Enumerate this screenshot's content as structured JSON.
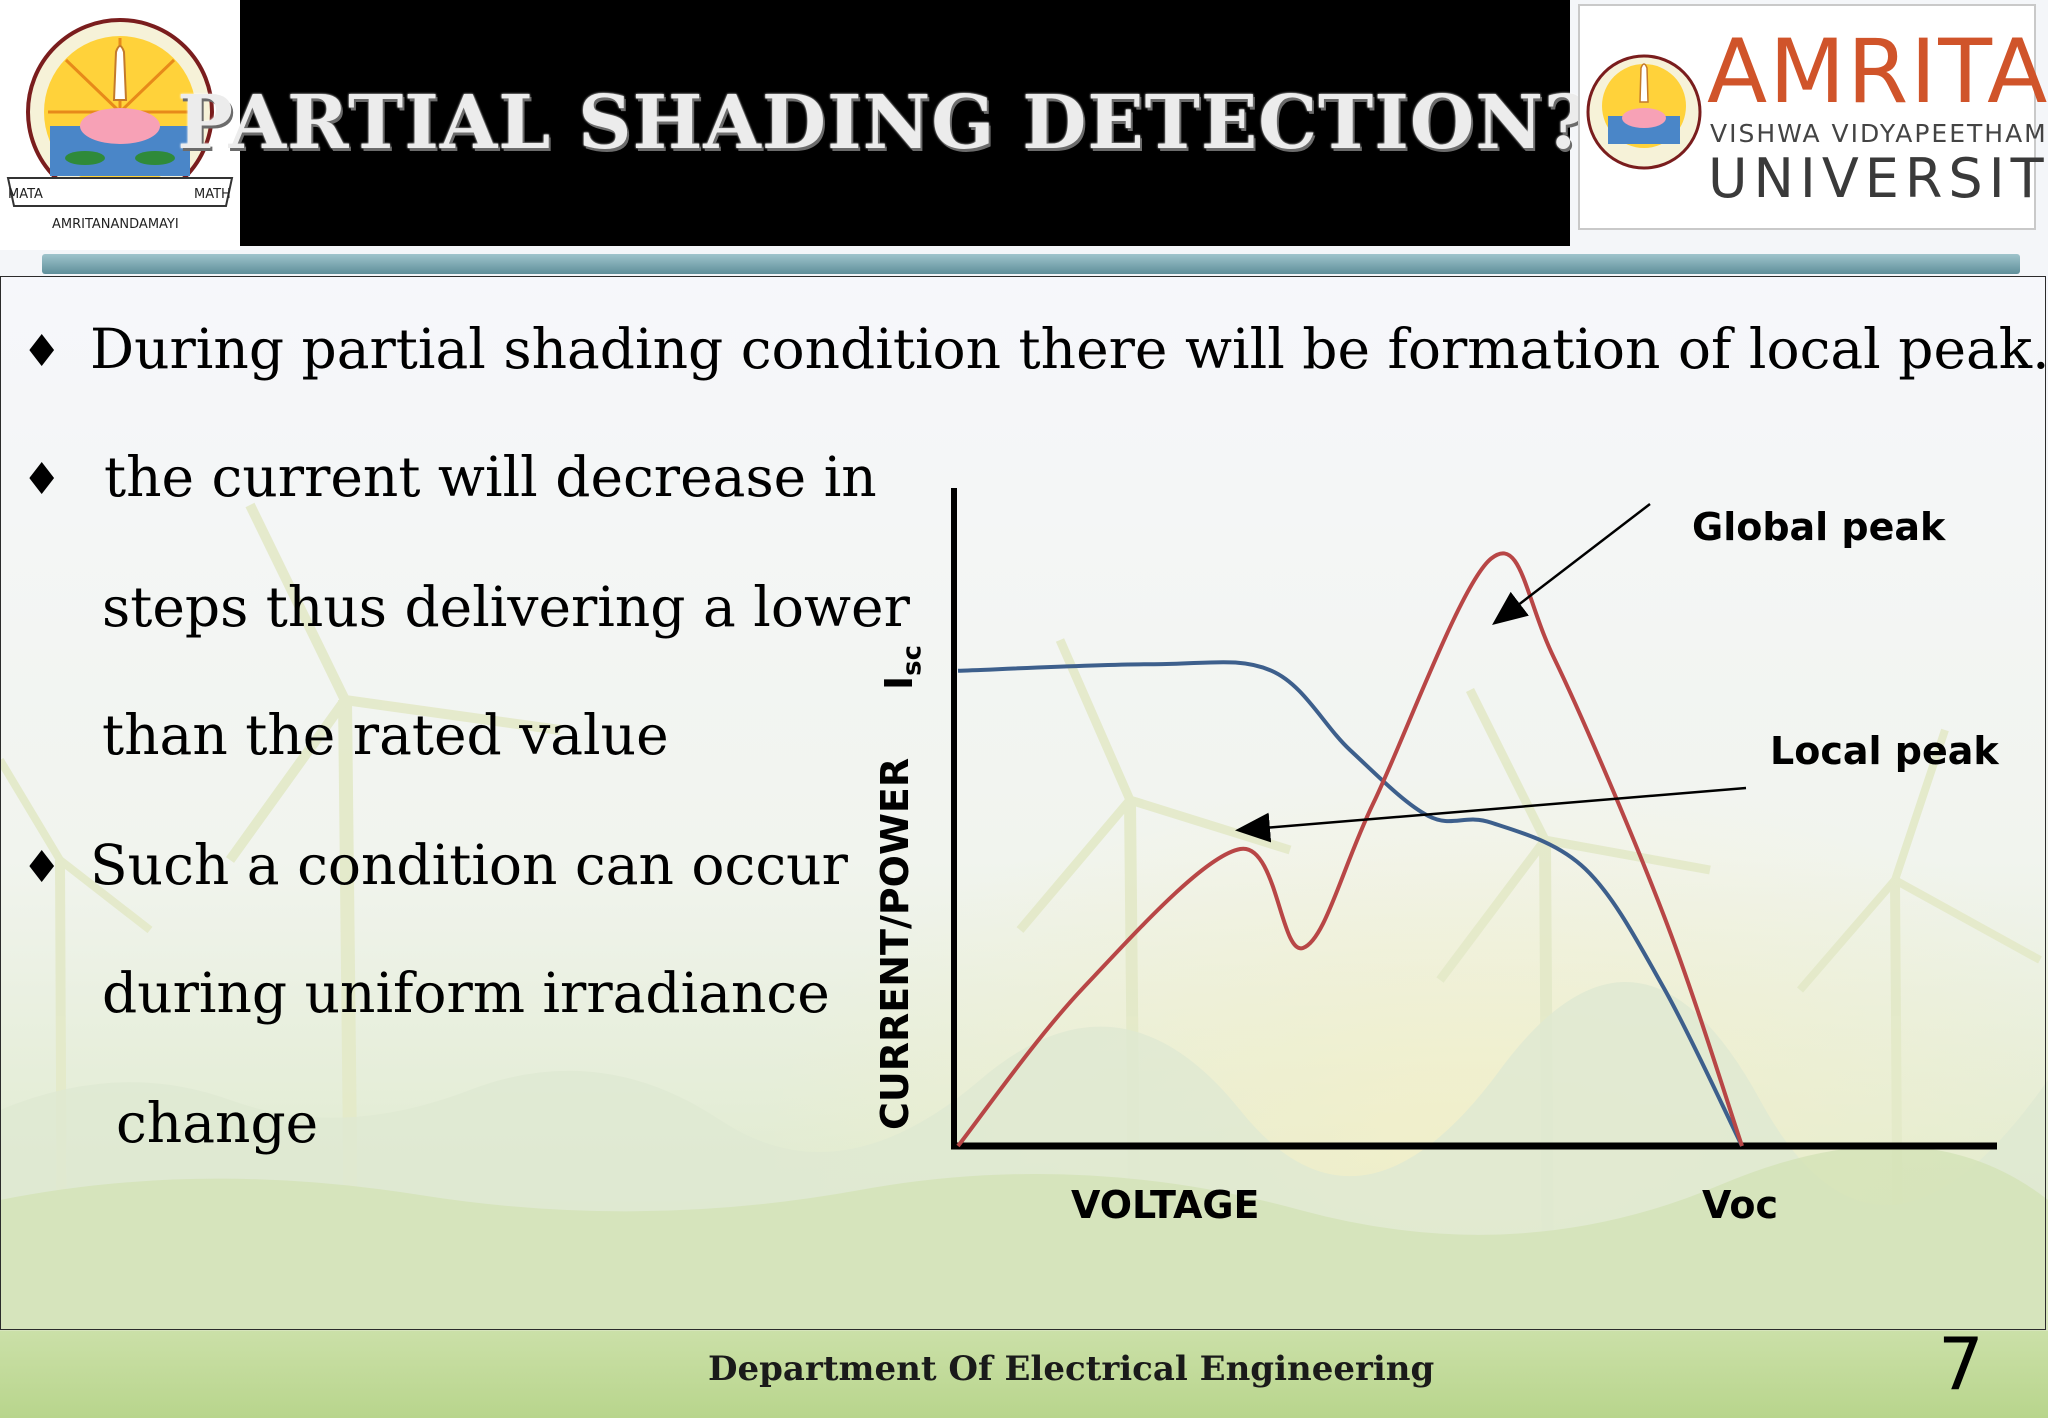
{
  "slide": {
    "title": "PARTIAL SHADING DETECTION??",
    "bullets": [
      {
        "lines": [
          "During partial shading condition there will be formation of local peak."
        ]
      },
      {
        "lines": [
          "the current will decrease in",
          "steps thus delivering a lower",
          "than the rated value"
        ]
      },
      {
        "lines": [
          "Such a condition can occur",
          "during uniform irradiance",
          "change"
        ]
      }
    ],
    "bullet_symbol": "♦"
  },
  "logos": {
    "left_seal": {
      "ring_text_left": "MATA",
      "ring_text_center": "AMRITANANDAMAYI",
      "ring_text_right": "MATH"
    },
    "right": {
      "name": "AMRITA",
      "subtitle": "VISHWA VIDYAPEETHAM",
      "university": "UNIVERSITY",
      "brand_color": "#d0542a"
    }
  },
  "chart_data": {
    "type": "line",
    "title": "",
    "xlabel": "VOLTAGE",
    "ylabel": "CURRENT/POWER",
    "x_tick_label": "Voc",
    "y_tick_label": "I",
    "y_tick_label_subscript": "sc",
    "annotations": [
      {
        "text": "Global peak"
      },
      {
        "text": "Local peak"
      }
    ],
    "series": [
      {
        "color": "#3d5f8c",
        "x": [
          0,
          0.25,
          0.4,
          0.5,
          0.6,
          0.68,
          0.8,
          0.9,
          1.0
        ],
        "y": [
          0.72,
          0.73,
          0.72,
          0.6,
          0.5,
          0.49,
          0.42,
          0.24,
          0.0
        ]
      },
      {
        "color": "#b84646",
        "x": [
          0,
          0.16,
          0.36,
          0.44,
          0.53,
          0.68,
          0.76,
          0.9,
          1.0
        ],
        "y": [
          0.0,
          0.24,
          0.45,
          0.3,
          0.52,
          0.89,
          0.74,
          0.35,
          0.0
        ]
      }
    ],
    "grid": false,
    "legend": "none"
  },
  "footer": {
    "department": "Department Of Electrical Engineering",
    "page_number": "7"
  }
}
